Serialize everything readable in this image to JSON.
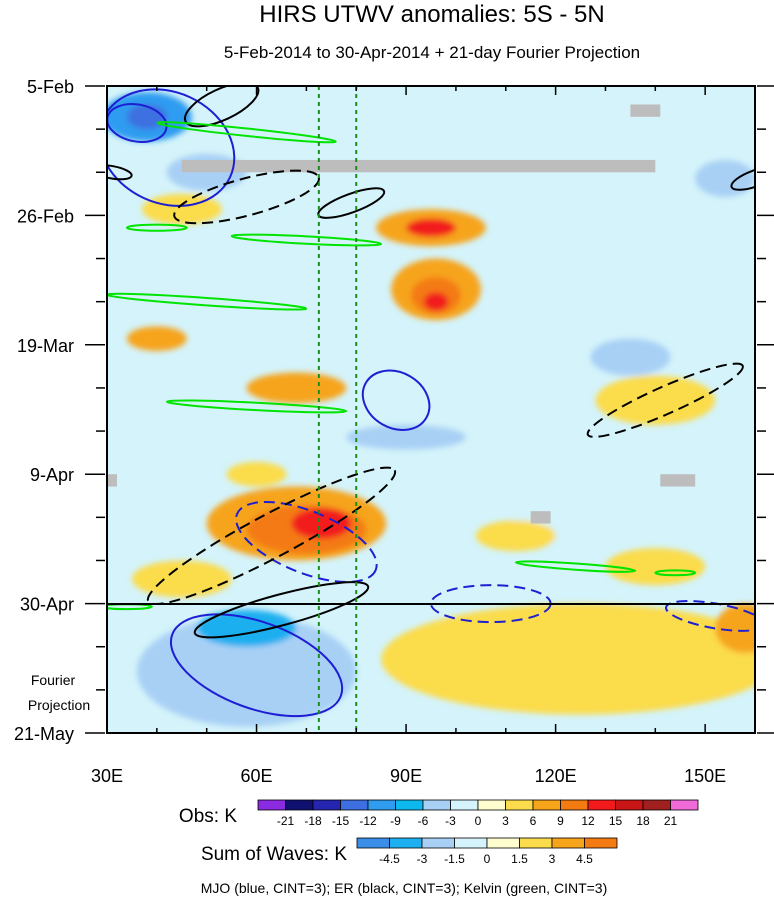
{
  "chart_data": {
    "type": "heatmap",
    "title": "HIRS UTWV anomalies: 5S - 5N",
    "subtitle": "5-Feb-2014 to 30-Apr-2014 + 21-day Fourier Projection",
    "xlim": [
      30,
      160
    ],
    "ylim_days": [
      0,
      105
    ],
    "x_ticks": [
      {
        "value": 30,
        "label": "30E"
      },
      {
        "value": 60,
        "label": "60E"
      },
      {
        "value": 90,
        "label": "90E"
      },
      {
        "value": 120,
        "label": "120E"
      },
      {
        "value": 150,
        "label": "150E"
      }
    ],
    "y_ticks": [
      {
        "day": 0,
        "label": "5-Feb"
      },
      {
        "day": 21,
        "label": "26-Feb"
      },
      {
        "day": 42,
        "label": "19-Mar"
      },
      {
        "day": 63,
        "label": "9-Apr"
      },
      {
        "day": 84,
        "label": "30-Apr"
      },
      {
        "day": 105,
        "label": "21-May"
      }
    ],
    "projection_label": [
      "Fourier",
      "Projection"
    ],
    "reference_lines_lon": [
      72.5,
      80
    ],
    "obs_legend": {
      "title": "Obs: K",
      "levels": [
        "-21",
        "-18",
        "-15",
        "-12",
        "-9",
        "-6",
        "-3",
        "0",
        "3",
        "6",
        "9",
        "12",
        "15",
        "18",
        "21"
      ],
      "colors": [
        "#8a2be2",
        "#101070",
        "#2525b0",
        "#3e6fe0",
        "#2f9cf0",
        "#0cb8ee",
        "#a8d0f5",
        "#d4f3fa",
        "#fefdd0",
        "#fbdc4c",
        "#f6a41a",
        "#f47a12",
        "#f21a1a",
        "#c81616",
        "#a02020",
        "#f06ad8"
      ]
    },
    "waves_legend": {
      "title": "Sum of Waves: K",
      "levels": [
        "-4.5",
        "-3",
        "-1.5",
        "0",
        "1.5",
        "3",
        "4.5"
      ],
      "colors": [
        "#3a8ee8",
        "#1eaff0",
        "#a8d0f5",
        "#d4f3fa",
        "#fefdd0",
        "#fbdc4c",
        "#f6a41a",
        "#f47a12"
      ]
    },
    "wave_caption": "MJO (blue, CINT=3); ER (black, CINT=3); Kelvin (green, CINT=3)",
    "wave_colors": {
      "MJO": "#1e1ed2",
      "ER": "#000000",
      "Kelvin": "#00e400"
    },
    "anomaly_blobs": [
      {
        "lon": 38,
        "day": 5,
        "rx": 9,
        "ry": 4,
        "level": -12
      },
      {
        "lon": 38,
        "day": 5,
        "rx": 4,
        "ry": 2,
        "level": -15
      },
      {
        "lon": 50,
        "day": 14,
        "rx": 8,
        "ry": 3,
        "level": -6
      },
      {
        "lon": 154,
        "day": 15,
        "rx": 6,
        "ry": 3,
        "level": -6
      },
      {
        "lon": 95,
        "day": 23,
        "rx": 11,
        "ry": 3,
        "level": 6
      },
      {
        "lon": 95,
        "day": 23,
        "rx": 5,
        "ry": 1.5,
        "level": 12
      },
      {
        "lon": 45,
        "day": 20,
        "rx": 8,
        "ry": 2.5,
        "level": 3
      },
      {
        "lon": 96,
        "day": 33,
        "rx": 9,
        "ry": 5,
        "level": 6
      },
      {
        "lon": 96,
        "day": 34,
        "rx": 5,
        "ry": 3,
        "level": 9
      },
      {
        "lon": 96,
        "day": 35,
        "rx": 2.5,
        "ry": 1.5,
        "level": 12
      },
      {
        "lon": 125,
        "day": 30,
        "rx": 10,
        "ry": 2.5,
        "level": -3
      },
      {
        "lon": 135,
        "day": 44,
        "rx": 8,
        "ry": 3,
        "level": -6
      },
      {
        "lon": 40,
        "day": 41,
        "rx": 6,
        "ry": 2,
        "level": 6
      },
      {
        "lon": 68,
        "day": 49,
        "rx": 10,
        "ry": 2.5,
        "level": 6
      },
      {
        "lon": 90,
        "day": 57,
        "rx": 12,
        "ry": 2,
        "level": -6
      },
      {
        "lon": 140,
        "day": 51,
        "rx": 12,
        "ry": 4,
        "level": 3
      },
      {
        "lon": 60,
        "day": 63,
        "rx": 6,
        "ry": 2,
        "level": 3
      },
      {
        "lon": 68,
        "day": 71,
        "rx": 18,
        "ry": 6,
        "level": 6
      },
      {
        "lon": 70,
        "day": 72,
        "rx": 12,
        "ry": 4,
        "level": 9
      },
      {
        "lon": 73,
        "day": 71,
        "rx": 6,
        "ry": 2.5,
        "level": 12
      },
      {
        "lon": 45,
        "day": 80,
        "rx": 10,
        "ry": 3,
        "level": 3
      },
      {
        "lon": 125,
        "day": 71,
        "rx": 14,
        "ry": 4,
        "level": -3
      },
      {
        "lon": 112,
        "day": 73,
        "rx": 8,
        "ry": 2.5,
        "level": 3
      },
      {
        "lon": 140,
        "day": 78,
        "rx": 10,
        "ry": 3,
        "level": 3
      }
    ],
    "projection_blobs": [
      {
        "lon": 58,
        "day": 95,
        "rx": 22,
        "ry": 9,
        "level": -3
      },
      {
        "lon": 58,
        "day": 88,
        "rx": 10,
        "ry": 3,
        "level": -4.5
      },
      {
        "lon": 125,
        "day": 93,
        "rx": 40,
        "ry": 9,
        "level": 1.5
      },
      {
        "lon": 158,
        "day": 88,
        "rx": 6,
        "ry": 4,
        "level": 3
      }
    ],
    "missing_data": [
      {
        "lon0": 45,
        "lon1": 140,
        "day0": 12,
        "day1": 14
      },
      {
        "lon0": 135,
        "lon1": 141,
        "day0": 3,
        "day1": 5
      },
      {
        "lon0": 141,
        "lon1": 148,
        "day0": 63,
        "day1": 65
      },
      {
        "lon0": 115,
        "lon1": 119,
        "day0": 69,
        "day1": 71
      },
      {
        "lon0": 30,
        "lon1": 32,
        "day0": 63,
        "day1": 65
      }
    ],
    "mjo_contours": [
      {
        "cx": 42,
        "cy": 10,
        "rx": 14,
        "ry": 9,
        "rot": 25,
        "dashed": false
      },
      {
        "cx": 36,
        "cy": 6,
        "rx": 6,
        "ry": 3,
        "rot": 10,
        "dashed": false
      },
      {
        "cx": 88,
        "cy": 51,
        "rx": 7,
        "ry": 4.5,
        "rot": 30,
        "dashed": false
      },
      {
        "cx": 70,
        "cy": 74,
        "rx": 15,
        "ry": 5,
        "rot": 22,
        "dashed": true
      },
      {
        "cx": 107,
        "cy": 84,
        "rx": 12,
        "ry": 3,
        "rot": 0,
        "dashed": true
      },
      {
        "cx": 60,
        "cy": 94,
        "rx": 18,
        "ry": 7,
        "rot": 20,
        "dashed": false
      },
      {
        "cx": 152,
        "cy": 86,
        "rx": 10,
        "ry": 2,
        "rot": 10,
        "dashed": true
      }
    ],
    "er_contours": [
      {
        "cx": 53,
        "cy": 3,
        "rx": 8,
        "ry": 2.5,
        "rot": -25,
        "dashed": false
      },
      {
        "cx": 58,
        "cy": 18,
        "rx": 15,
        "ry": 3,
        "rot": -15,
        "dashed": true
      },
      {
        "cx": 79,
        "cy": 19,
        "rx": 7,
        "ry": 1.5,
        "rot": -20,
        "dashed": false
      },
      {
        "cx": 142,
        "cy": 51,
        "rx": 17,
        "ry": 2.2,
        "rot": -24,
        "dashed": true
      },
      {
        "cx": 63,
        "cy": 73,
        "rx": 28,
        "ry": 3.5,
        "rot": -28,
        "dashed": true
      },
      {
        "cx": 65,
        "cy": 85,
        "rx": 18,
        "ry": 2.5,
        "rot": -15,
        "dashed": false
      },
      {
        "cx": 31,
        "cy": 14,
        "rx": 4,
        "ry": 1,
        "rot": 10,
        "dashed": false
      },
      {
        "cx": 160,
        "cy": 15,
        "rx": 5,
        "ry": 1.3,
        "rot": -20,
        "dashed": false
      }
    ],
    "kelvin_contours": [
      {
        "cx": 58,
        "cy": 7.5,
        "rx": 18,
        "ry": 0.6,
        "rot": 6
      },
      {
        "cx": 40,
        "cy": 23,
        "rx": 6,
        "ry": 0.5,
        "rot": 0
      },
      {
        "cx": 70,
        "cy": 25,
        "rx": 15,
        "ry": 0.6,
        "rot": 3
      },
      {
        "cx": 50,
        "cy": 35,
        "rx": 20,
        "ry": 0.6,
        "rot": 4
      },
      {
        "cx": 60,
        "cy": 52,
        "rx": 18,
        "ry": 0.6,
        "rot": 3
      },
      {
        "cx": 124,
        "cy": 78,
        "rx": 12,
        "ry": 0.5,
        "rot": 4
      },
      {
        "cx": 34,
        "cy": 84.5,
        "rx": 5,
        "ry": 0.4,
        "rot": 0
      },
      {
        "cx": 144,
        "cy": 79,
        "rx": 4,
        "ry": 0.4,
        "rot": 0
      }
    ]
  }
}
